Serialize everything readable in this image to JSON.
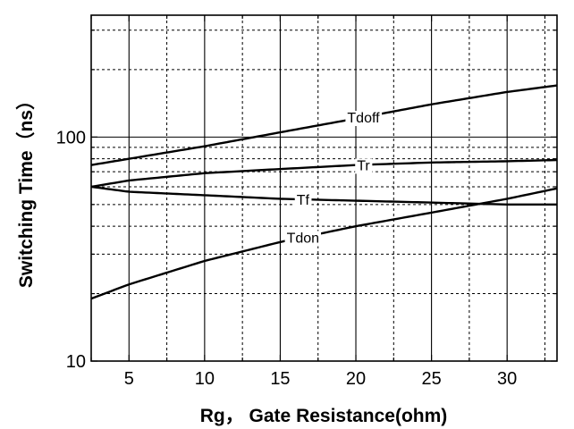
{
  "chart_data": {
    "type": "line",
    "title": "",
    "xlabel": "Rg， Gate Resistance(ohm)",
    "ylabel": "Switching Time（ns）",
    "x_scale": "linear",
    "y_scale": "log",
    "xlim": [
      2.5,
      33.3
    ],
    "ylim": [
      10,
      350
    ],
    "x_ticks": [
      5,
      10,
      15,
      20,
      25,
      30
    ],
    "x_tick_labels": [
      "5",
      "10",
      "15",
      "20",
      "25",
      "30"
    ],
    "y_ticks": [
      10,
      100
    ],
    "y_tick_labels": [
      "10",
      "100"
    ],
    "grid": true,
    "legend": "none",
    "series": [
      {
        "name": "Tdoff",
        "x": [
          2.5,
          5,
          10,
          15,
          20,
          25,
          30,
          33.3
        ],
        "y": [
          75,
          80,
          91,
          105,
          121,
          140,
          159,
          170
        ]
      },
      {
        "name": "Tr",
        "x": [
          2.5,
          5,
          10,
          15,
          20,
          25,
          30,
          33.3
        ],
        "y": [
          60,
          64,
          69,
          72,
          75,
          77,
          78,
          79
        ]
      },
      {
        "name": "Tf",
        "x": [
          2.5,
          5,
          10,
          15,
          20,
          25,
          30,
          33.3
        ],
        "y": [
          60,
          57,
          55,
          53,
          52,
          51,
          50,
          50
        ]
      },
      {
        "name": "Tdon",
        "x": [
          2.5,
          5,
          10,
          15,
          20,
          25,
          30,
          33.3
        ],
        "y": [
          19,
          22,
          28,
          34,
          40,
          46,
          53,
          59
        ]
      }
    ],
    "annotations": [
      {
        "text": "Tdoff",
        "series": "Tdoff",
        "x": 20.5
      },
      {
        "text": "Tr",
        "series": "Tr",
        "x": 20.5
      },
      {
        "text": "Tf",
        "series": "Tf",
        "x": 16.5
      },
      {
        "text": "Tdon",
        "series": "Tdon",
        "x": 16.5
      }
    ]
  }
}
